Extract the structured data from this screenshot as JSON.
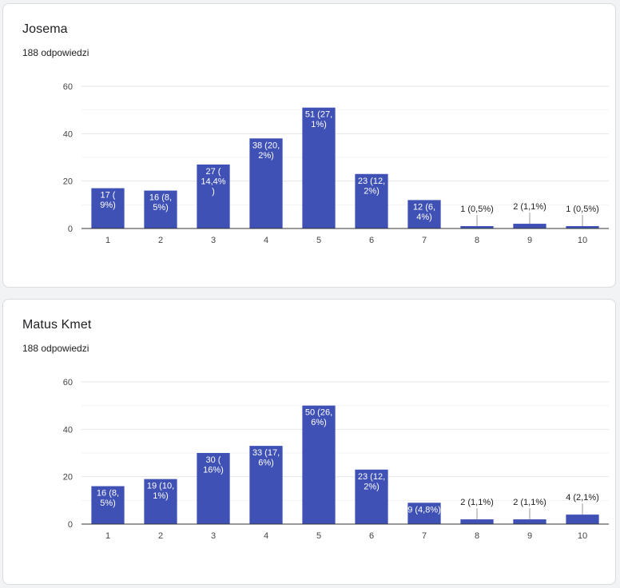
{
  "questions": [
    {
      "title": "Josema",
      "subtitle": "188 odpowiedzi",
      "chart_data": {
        "type": "bar",
        "categories": [
          "1",
          "2",
          "3",
          "4",
          "5",
          "6",
          "7",
          "8",
          "9",
          "10"
        ],
        "values": [
          17,
          16,
          27,
          38,
          51,
          23,
          12,
          1,
          2,
          1
        ],
        "labels": [
          "17 (\n9%)",
          "16 (8,\n5%)",
          "27 (\n14,4%\n)",
          "38 (20,\n2%)",
          "51 (27,\n1%)",
          "23 (12,\n2%)",
          "12 (6,\n4%)",
          "1 (0,5%)",
          "2 (1,1%)",
          "1 (0,5%)"
        ],
        "yticks": [
          0,
          20,
          40,
          60
        ],
        "ylim": [
          0,
          60
        ],
        "grid": true,
        "bar_color": "#3f51b5"
      }
    },
    {
      "title": "Matus Kmet",
      "subtitle": "188 odpowiedzi",
      "chart_data": {
        "type": "bar",
        "categories": [
          "1",
          "2",
          "3",
          "4",
          "5",
          "6",
          "7",
          "8",
          "9",
          "10"
        ],
        "values": [
          16,
          19,
          30,
          33,
          50,
          23,
          9,
          2,
          2,
          4
        ],
        "labels": [
          "16 (8,\n5%)",
          "19 (10,\n1%)",
          "30 (\n16%)",
          "33 (17,\n6%)",
          "50 (26,\n6%)",
          "23 (12,\n2%)",
          "9 (4,8%)",
          "2 (1,1%)",
          "2 (1,1%)",
          "4 (2,1%)"
        ],
        "yticks": [
          0,
          20,
          40,
          60
        ],
        "ylim": [
          0,
          60
        ],
        "grid": true,
        "bar_color": "#3f51b5"
      }
    }
  ]
}
